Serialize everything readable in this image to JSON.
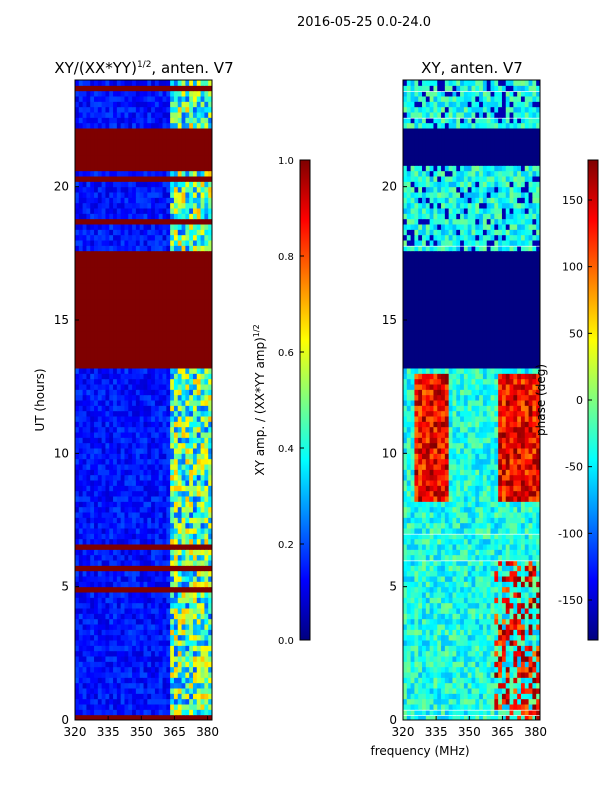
{
  "figure": {
    "suptitle": "2016-05-25 0.0-24.0",
    "xlabel_shared": "frequency (MHz)"
  },
  "colors": {
    "low": "#00007f",
    "high": "#7f0000",
    "colormap": [
      "#00007f",
      "#0000ff",
      "#007fff",
      "#00ffff",
      "#7fff7f",
      "#ffff00",
      "#ff7f00",
      "#ff0000",
      "#7f0000"
    ]
  },
  "chart_data": [
    {
      "type": "heatmap",
      "title": "XY/(XX*YY)",
      "title_exponent": "1/2",
      "title_suffix": ", anten. V7",
      "xlabel": "",
      "ylabel": "UT (hours)",
      "xlim": [
        320,
        382
      ],
      "ylim": [
        0,
        24
      ],
      "xticks": [
        320,
        335,
        350,
        365,
        380
      ],
      "yticks": [
        0,
        5,
        10,
        15,
        20
      ],
      "colorbar": {
        "label": "XY amp. / (XX*YY amp)",
        "label_exponent": "1/2",
        "range": [
          0.0,
          1.0
        ],
        "ticks": [
          "0.0",
          "0.2",
          "0.4",
          "0.6",
          "0.8",
          "1.0"
        ]
      },
      "saturated_bands_hours": [
        [
          13.2,
          17.7
        ],
        [
          20.9,
          22.2
        ]
      ],
      "signal_band_mhz": [
        362,
        382
      ],
      "value_summary": "background about 0.1; saturated (1.0) during 13.2-17.7 h and 20.9-22.2 h; higher values (0.4-0.7) at 362-382 MHz"
    },
    {
      "type": "heatmap",
      "title": "XY, anten. V7",
      "xlabel": "frequency (MHz)",
      "ylabel": "",
      "xlim": [
        320,
        382
      ],
      "ylim": [
        0,
        24
      ],
      "xticks": [
        320,
        335,
        350,
        365,
        380
      ],
      "yticks": [
        0,
        5,
        10,
        15,
        20
      ],
      "colorbar": {
        "label": "phase (deg)",
        "range": [
          -180,
          180
        ],
        "ticks": [
          "-150",
          "-100",
          "-50",
          "0",
          "50",
          "100",
          "150"
        ]
      },
      "flagged_bands_hours": [
        [
          13.2,
          17.7
        ],
        [
          20.9,
          22.2
        ]
      ],
      "value_summary": "phase near -80 to -120 deg background; high positive phase (100-180 deg) streaks between 8 and 13 h near 325-340 MHz and 365-382 MHz"
    }
  ]
}
